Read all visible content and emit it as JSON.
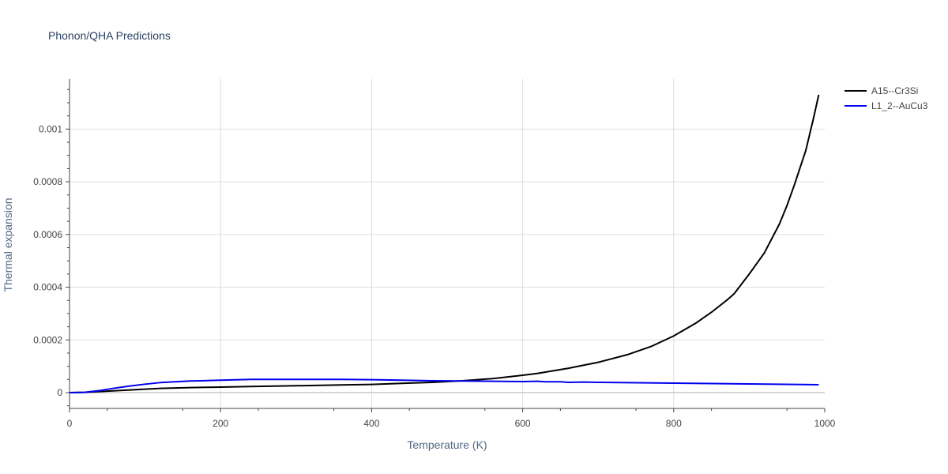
{
  "chart_data": {
    "type": "line",
    "title": "Phonon/QHA Predictions",
    "xlabel": "Temperature (K)",
    "ylabel": "Thermal expansion",
    "xlim": [
      0,
      1000
    ],
    "ylim": [
      -6e-05,
      0.00119
    ],
    "x_ticks": [
      0,
      200,
      400,
      600,
      800,
      1000
    ],
    "x_tick_labels": [
      "0",
      "200",
      "400",
      "600",
      "800",
      "1000"
    ],
    "y_ticks": [
      0,
      0.0002,
      0.0004,
      0.0006,
      0.0008,
      0.001
    ],
    "y_tick_labels": [
      "0",
      "0.0002",
      "0.0004",
      "0.0006",
      "0.0008",
      "0.001"
    ],
    "grid": true,
    "legend_position": "top-right",
    "series": [
      {
        "name": "A15--Cr3Si",
        "color": "#000000",
        "x": [
          0,
          20,
          40,
          60,
          80,
          100,
          120,
          160,
          200,
          240,
          280,
          320,
          360,
          400,
          440,
          480,
          520,
          560,
          600,
          620,
          660,
          700,
          740,
          770,
          800,
          830,
          850,
          870,
          880,
          900,
          920,
          940,
          950,
          960,
          975,
          985,
          992
        ],
        "y": [
          0,
          1e-06,
          4e-06,
          7e-06,
          1e-05,
          1.3e-05,
          1.6e-05,
          1.9e-05,
          2.1e-05,
          2.3e-05,
          2.5e-05,
          2.7e-05,
          2.9e-05,
          3.1e-05,
          3.5e-05,
          3.9e-05,
          4.5e-05,
          5.3e-05,
          6.6e-05,
          7.3e-05,
          9.2e-05,
          0.000115,
          0.000145,
          0.000175,
          0.000215,
          0.000265,
          0.000305,
          0.00035,
          0.000375,
          0.00045,
          0.00053,
          0.00064,
          0.00071,
          0.00079,
          0.00092,
          0.00104,
          0.00113
        ]
      },
      {
        "name": "L1_2--AuCu3",
        "color": "#0000ee",
        "x": [
          0,
          20,
          40,
          60,
          80,
          100,
          120,
          160,
          200,
          240,
          280,
          320,
          360,
          400,
          440,
          480,
          520,
          560,
          600,
          620,
          630,
          650,
          660,
          680,
          700,
          800,
          900,
          992
        ],
        "y": [
          0,
          1e-06,
          8e-06,
          1.7e-05,
          2.5e-05,
          3.2e-05,
          3.8e-05,
          4.4e-05,
          4.7e-05,
          5e-05,
          5e-05,
          5e-05,
          5e-05,
          4.9e-05,
          4.7e-05,
          4.5e-05,
          4.4e-05,
          4.3e-05,
          4.2e-05,
          4.3e-05,
          4.1e-05,
          4.1e-05,
          3.9e-05,
          4e-05,
          3.9e-05,
          3.6e-05,
          3.3e-05,
          3e-05
        ]
      }
    ]
  }
}
